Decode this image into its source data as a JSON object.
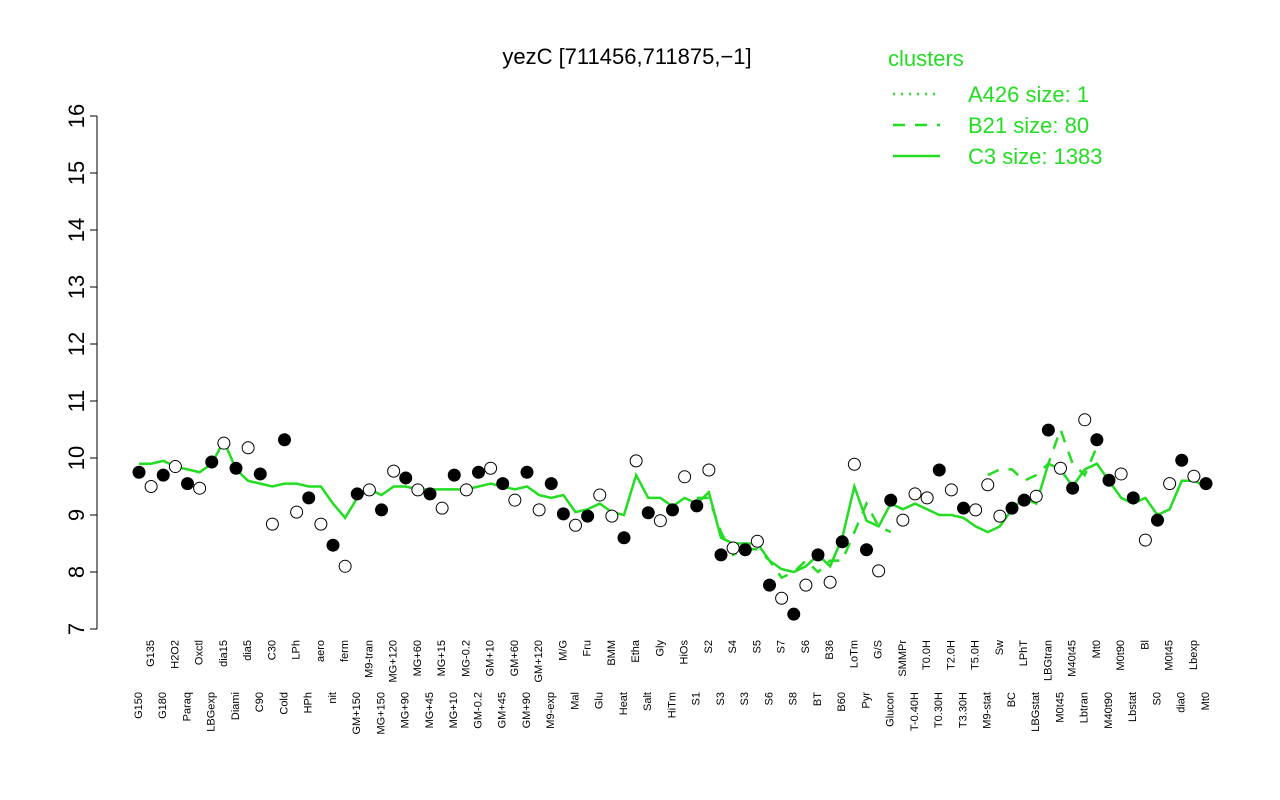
{
  "chart_data": {
    "type": "scatter",
    "title": "yezC [711456,711875,−1]",
    "ylim": [
      7,
      16
    ],
    "yticks": [
      7,
      8,
      9,
      10,
      11,
      12,
      13,
      14,
      15,
      16
    ],
    "categories": [
      "G150",
      "G135",
      "G180",
      "H2O2",
      "Paraq",
      "Oxctl",
      "LBGexp",
      "dia15",
      "Diami",
      "dia5",
      "C90",
      "C30",
      "Cold",
      "LPh",
      "HPh",
      "aero",
      "nit",
      "ferm",
      "GM+150",
      "M9-tran",
      "MG+150",
      "MG+120",
      "MG+90",
      "MG+60",
      "MG+45",
      "MG+15",
      "MG+10",
      "MG-0.2",
      "GM-0.2",
      "GM+10",
      "GM+45",
      "GM+60",
      "GM+90",
      "GM+120",
      "M9-exp",
      "M/G",
      "Mal",
      "Fru",
      "Glu",
      "BMM",
      "Heat",
      "Etha",
      "Salt",
      "Gly",
      "HiTm",
      "HiOs",
      "S1",
      "S2",
      "S3",
      "S4",
      "S3",
      "S5",
      "S6",
      "S7",
      "S8",
      "S6",
      "BT",
      "B36",
      "B60",
      "LoTm",
      "Pyr",
      "G/S",
      "Glucon",
      "SMMPr",
      "T-0.40H",
      "T0.0H",
      "T0.30H",
      "T2.0H",
      "T3.30H",
      "T5.0H",
      "M9-stat",
      "Sw",
      "BC",
      "LPhT",
      "LBGstat",
      "LBGtran",
      "M0t45",
      "M40t45",
      "Lbtran",
      "Mt0",
      "M40t90",
      "M0t90",
      "Lbstat",
      "Bl",
      "S0",
      "M0t45",
      "dia0",
      "Lbexp",
      "Mt0"
    ],
    "values": [
      9.75,
      9.5,
      9.7,
      9.85,
      9.55,
      9.47,
      9.93,
      10.26,
      9.82,
      10.18,
      9.72,
      8.84,
      10.32,
      9.05,
      9.3,
      8.84,
      8.47,
      8.1,
      9.37,
      9.44,
      9.09,
      9.77,
      9.65,
      9.44,
      9.37,
      9.12,
      9.7,
      9.44,
      9.75,
      9.82,
      9.55,
      9.26,
      9.75,
      9.09,
      9.55,
      9.02,
      8.82,
      8.98,
      9.35,
      8.98,
      8.6,
      9.95,
      9.04,
      8.9,
      9.09,
      9.67,
      9.16,
      9.79,
      8.3,
      8.42,
      8.39,
      8.54,
      7.77,
      7.54,
      7.26,
      7.77,
      8.3,
      7.82,
      8.53,
      9.89,
      8.39,
      8.02,
      9.26,
      8.91,
      9.37,
      9.3,
      9.79,
      9.44,
      9.12,
      9.09,
      9.53,
      8.98,
      9.12,
      9.26,
      9.33,
      10.49,
      9.82,
      9.47,
      10.67,
      10.32,
      9.61,
      9.72,
      9.3,
      8.56,
      8.91,
      9.55,
      9.96,
      9.68,
      9.55
    ],
    "filled": [
      true,
      false,
      true,
      false,
      true,
      false,
      true,
      false,
      true,
      false,
      true,
      false,
      true,
      false,
      true,
      false,
      true,
      false,
      true,
      false,
      true,
      false,
      true,
      false,
      true,
      false,
      true,
      false,
      true,
      false,
      true,
      false,
      true,
      false,
      true,
      true,
      false,
      true,
      false,
      false,
      true,
      false,
      true,
      false,
      true,
      false,
      true,
      false,
      true,
      false,
      true,
      false,
      true,
      false,
      true,
      false,
      true,
      false,
      true,
      false,
      true,
      false,
      true,
      false,
      false,
      false,
      true,
      false,
      true,
      false,
      false,
      false,
      true,
      true,
      false,
      true,
      false,
      true,
      false,
      true,
      true,
      false,
      true,
      false,
      true,
      false,
      true,
      false,
      true
    ],
    "legend_title": "clusters",
    "legend_position": "top-right",
    "series": [
      {
        "name": "A426 size: 1",
        "color": "#22dd22",
        "style": "dotted"
      },
      {
        "name": "B21 size: 80",
        "color": "#22dd22",
        "style": "dashed",
        "values": [
          null,
          null,
          null,
          null,
          null,
          null,
          null,
          null,
          null,
          null,
          null,
          null,
          null,
          null,
          null,
          null,
          null,
          null,
          null,
          null,
          null,
          null,
          null,
          null,
          null,
          null,
          null,
          null,
          null,
          null,
          null,
          null,
          null,
          null,
          null,
          null,
          null,
          null,
          null,
          null,
          null,
          null,
          null,
          null,
          null,
          null,
          9.3,
          9.3,
          8.7,
          8.3,
          8.4,
          8.4,
          8.2,
          7.9,
          8.0,
          8.2,
          8.0,
          8.2,
          8.2,
          8.7,
          9.2,
          8.8,
          8.7,
          null,
          null,
          null,
          null,
          null,
          null,
          null,
          9.7,
          9.8,
          9.8,
          9.6,
          9.7,
          9.9,
          10.5,
          9.9,
          9.7,
          10.2,
          null,
          null,
          null,
          null,
          null,
          null,
          null,
          null,
          null
        ]
      },
      {
        "name": "C3 size: 1383",
        "color": "#22dd22",
        "style": "solid",
        "values": [
          9.9,
          9.9,
          9.95,
          9.85,
          9.8,
          9.75,
          9.9,
          10.3,
          9.8,
          9.6,
          9.55,
          9.5,
          9.55,
          9.55,
          9.5,
          9.5,
          9.2,
          8.95,
          9.3,
          9.45,
          9.35,
          9.5,
          9.5,
          9.45,
          9.45,
          9.45,
          9.45,
          9.45,
          9.5,
          9.55,
          9.5,
          9.45,
          9.5,
          9.35,
          9.3,
          9.35,
          9.05,
          9.1,
          9.2,
          9.05,
          9.0,
          9.7,
          9.3,
          9.3,
          9.15,
          9.3,
          9.2,
          9.4,
          8.6,
          8.5,
          8.5,
          8.5,
          8.2,
          8.05,
          8.0,
          8.1,
          8.3,
          8.1,
          8.6,
          9.5,
          8.9,
          8.8,
          9.2,
          9.1,
          9.2,
          9.1,
          9.0,
          9.0,
          8.95,
          8.8,
          8.7,
          8.8,
          9.1,
          9.3,
          9.2,
          9.9,
          9.8,
          9.5,
          9.8,
          9.9,
          9.6,
          9.3,
          9.2,
          9.3,
          9.0,
          9.1,
          9.6,
          9.6,
          9.5
        ]
      }
    ]
  }
}
